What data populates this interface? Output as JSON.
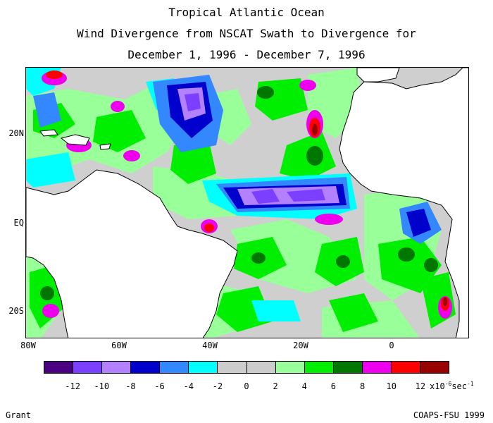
{
  "title": {
    "line1": "Tropical Atlantic Ocean",
    "line2": "Wind Divergence from NSCAT Swath to Divergence for",
    "line3": "December 1, 1996 - December 7, 1996"
  },
  "lat_labels": [
    "20N",
    "EQ",
    "20S"
  ],
  "lon_labels": [
    "80W",
    "60W",
    "40W",
    "20W",
    "0"
  ],
  "colorbar": {
    "colors": [
      "#4b0082",
      "#7b3fff",
      "#b380ff",
      "#0000cd",
      "#3388ff",
      "#00ffff",
      "#cccccc",
      "#cccccc",
      "#99ff99",
      "#00ee00",
      "#007700",
      "#ee00ee",
      "#ff0000",
      "#990000"
    ],
    "labels": [
      "-12",
      "-10",
      "-8",
      "-6",
      "-4",
      "-2",
      "0",
      "2",
      "4",
      "6",
      "8",
      "10",
      "12"
    ],
    "unit_prefix": "x10",
    "unit_exp": "-6",
    "unit_suffix": "sec",
    "unit_exp2": "-1"
  },
  "credits": {
    "left": "Grant",
    "right": "COAPS-FSU 1999"
  }
}
